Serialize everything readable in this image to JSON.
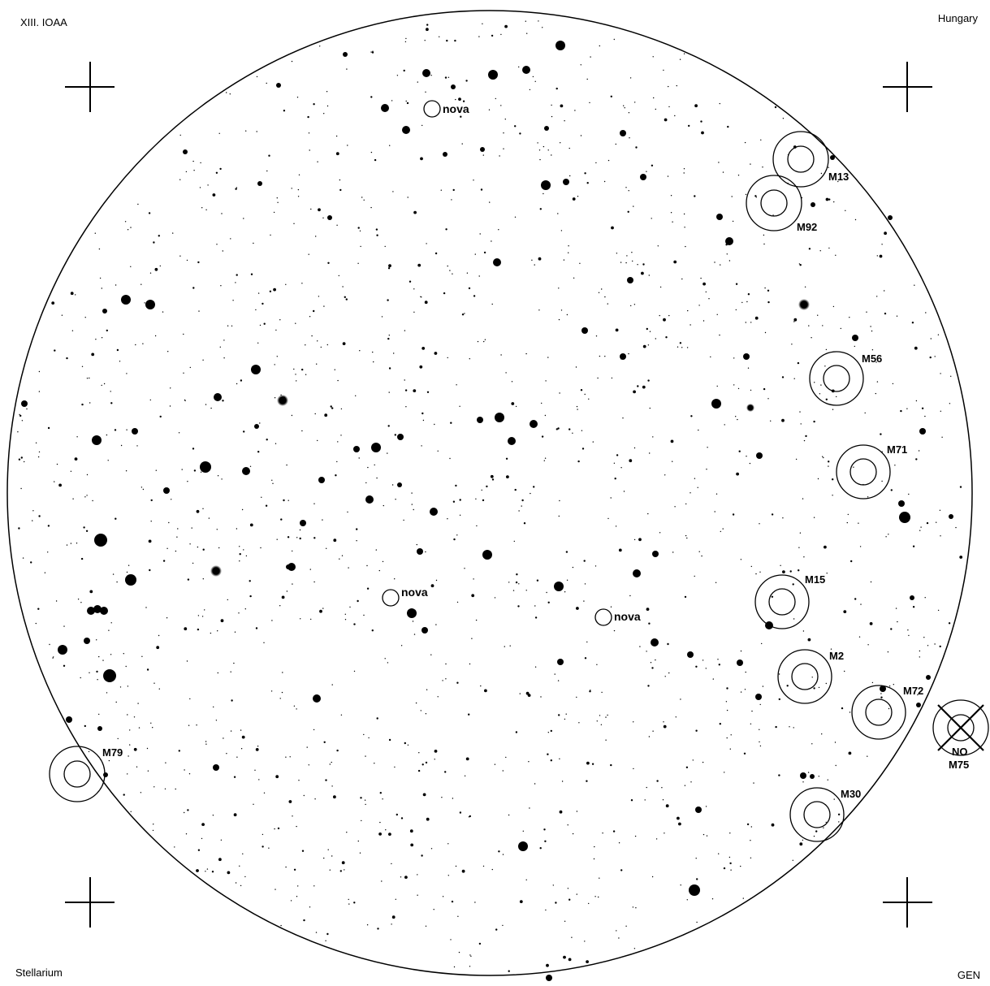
{
  "corners": {
    "top_left": "XIII. IOAA",
    "top_right": "Hungary",
    "bottom_left": "Stellarium",
    "bottom_right": "GEN"
  },
  "clusters": [
    {
      "id": "m13",
      "name": "M13"
    },
    {
      "id": "m92",
      "name": "M92"
    },
    {
      "id": "m56",
      "name": "M56"
    },
    {
      "id": "m71",
      "name": "M71"
    },
    {
      "id": "m15",
      "name": "M15"
    },
    {
      "id": "m2",
      "name": "M2"
    },
    {
      "id": "m72",
      "name": "M72"
    },
    {
      "id": "m30",
      "name": "M30"
    },
    {
      "id": "m79",
      "name": "M79"
    }
  ],
  "excluded": {
    "name": "M75",
    "note": "NO"
  },
  "novae": [
    {
      "id": "nova-1",
      "label": "nova"
    },
    {
      "id": "nova-2",
      "label": "nova"
    },
    {
      "id": "nova-3",
      "label": "nova"
    }
  ],
  "colors": {
    "ink": "#000000",
    "background": "#ffffff"
  }
}
